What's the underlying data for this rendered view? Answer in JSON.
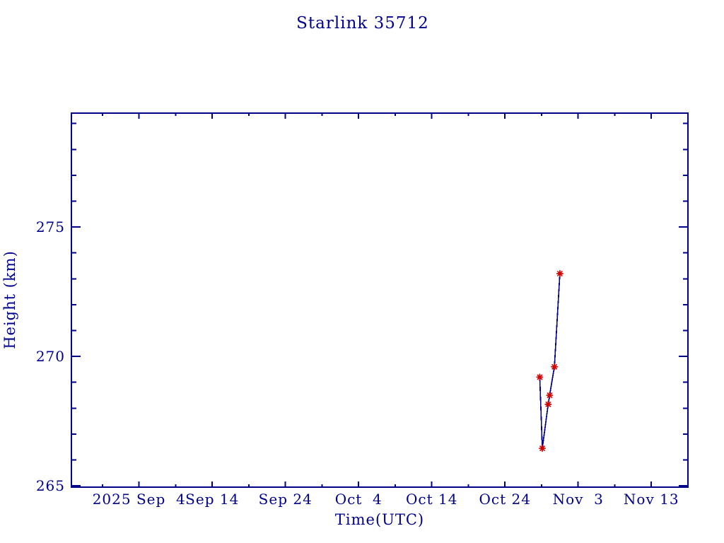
{
  "page": {
    "background": "#ffffff"
  },
  "chart_data": {
    "type": "line",
    "title": "Starlink 35712",
    "xlabel": "Time(UTC)",
    "ylabel": "Height (km)",
    "legend": "none",
    "grid": "off",
    "axis_color": "#00008B",
    "line_color": "#00008B",
    "marker_color": "#D40000",
    "marker_style": "asterisk",
    "x_axis": {
      "unit": "days since 2025 Sep 4 (UTC)",
      "range": [
        -9.25,
        75.0
      ],
      "range_dates": [
        "2025 Aug 26",
        "2025 Nov 18"
      ],
      "major_ticks": [
        {
          "day": 0,
          "label": "2025 Sep  4"
        },
        {
          "day": 10,
          "label": "Sep 14"
        },
        {
          "day": 20,
          "label": "Sep 24"
        },
        {
          "day": 30,
          "label": "Oct  4"
        },
        {
          "day": 40,
          "label": "Oct 14"
        },
        {
          "day": 50,
          "label": "Oct 24"
        },
        {
          "day": 60,
          "label": "Nov  3"
        },
        {
          "day": 70,
          "label": "Nov 13"
        }
      ],
      "minor_tick_days": [
        -5,
        5,
        15,
        25,
        35,
        45,
        55,
        65
      ]
    },
    "y_axis": {
      "unit": "km",
      "range": [
        264.95,
        279.4
      ],
      "major_ticks": [
        {
          "value": 265,
          "label": "265"
        },
        {
          "value": 270,
          "label": "270"
        },
        {
          "value": 275,
          "label": "275"
        }
      ],
      "minor_tick_values": [
        266,
        267,
        268,
        269,
        271,
        272,
        273,
        274,
        276,
        277,
        278,
        279
      ]
    },
    "series": [
      {
        "name": "height",
        "points": [
          {
            "date": "2025 Oct 28.7",
            "day": 54.75,
            "height_km": 269.2
          },
          {
            "date": "2025 Oct 29.1",
            "day": 55.1,
            "height_km": 266.45
          },
          {
            "date": "2025 Oct 29.9",
            "day": 55.9,
            "height_km": 268.15
          },
          {
            "date": "2025 Oct 30.1",
            "day": 56.1,
            "height_km": 268.5
          },
          {
            "date": "2025 Oct 30.7",
            "day": 56.75,
            "height_km": 269.6
          },
          {
            "date": "2025 Oct 31.5",
            "day": 57.5,
            "height_km": 273.2
          }
        ]
      }
    ]
  }
}
